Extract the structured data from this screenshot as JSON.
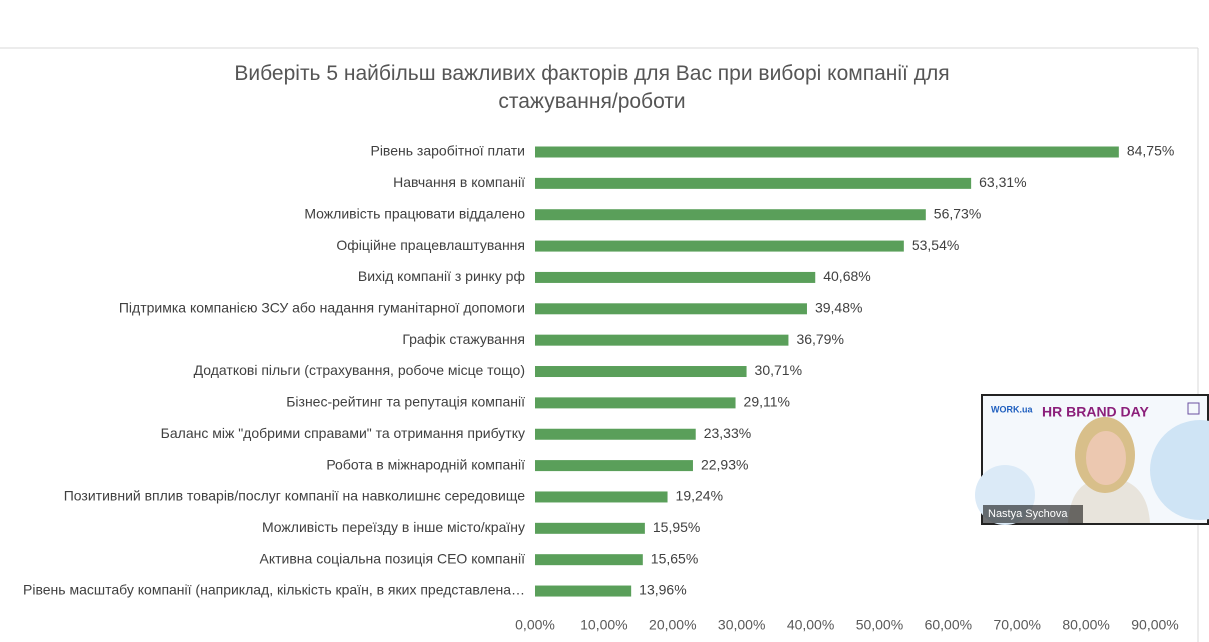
{
  "chart_data": {
    "type": "barh",
    "title": "Виберіть 5 найбільш важливих факторів для Вас при виборі компанії для стажування/роботи",
    "categories": [
      "Рівень заробітної плати",
      "Навчання в компанії",
      "Можливість працювати віддалено",
      "Офіційне працевлаштування",
      "Вихід компанії з ринку рф",
      "Підтримка компанією ЗСУ або надання гуманітарної допомоги",
      "Графік стажування",
      "Додаткові пільги (страхування, робоче місце тощо)",
      "Бізнес-рейтинг та репутація компанії",
      "Баланс між \"добрими справами\" та отримання прибутку",
      "Робота в міжнародній компанії",
      "Позитивний вплив товарів/послуг компанії на навколишнє середовище",
      "Можливість переїзду в інше місто/країну",
      "Активна соціальна позиція СЕО компанії",
      "Рівень масштабу компанії (наприклад,  кількість країн, в яких представлена…"
    ],
    "values": [
      84.75,
      63.31,
      56.73,
      53.54,
      40.68,
      39.48,
      36.79,
      30.71,
      29.11,
      23.33,
      22.93,
      19.24,
      15.95,
      15.65,
      13.96
    ],
    "value_labels": [
      "84,75%",
      "63,31%",
      "56,73%",
      "53,54%",
      "40,68%",
      "39,48%",
      "36,79%",
      "30,71%",
      "29,11%",
      "23,33%",
      "22,93%",
      "19,24%",
      "15,95%",
      "15,65%",
      "13,96%"
    ],
    "color": "#5a9f5a",
    "xlim": [
      0,
      90
    ],
    "xticks": [
      {
        "value": 0,
        "label": "0,00%"
      },
      {
        "value": 10,
        "label": "10,00%"
      },
      {
        "value": 20,
        "label": "20,00%"
      },
      {
        "value": 30,
        "label": "30,00%"
      },
      {
        "value": 40,
        "label": "40,00%"
      },
      {
        "value": 50,
        "label": "50,00%"
      },
      {
        "value": 60,
        "label": "60,00%"
      },
      {
        "value": 70,
        "label": "70,00%"
      },
      {
        "value": 80,
        "label": "80,00%"
      },
      {
        "value": 90,
        "label": "90,00%"
      }
    ],
    "grid": false
  },
  "overlay": {
    "logo": "WORK.ua",
    "event": "HR BRAND DAY",
    "speaker": "Nastya Sychova"
  }
}
